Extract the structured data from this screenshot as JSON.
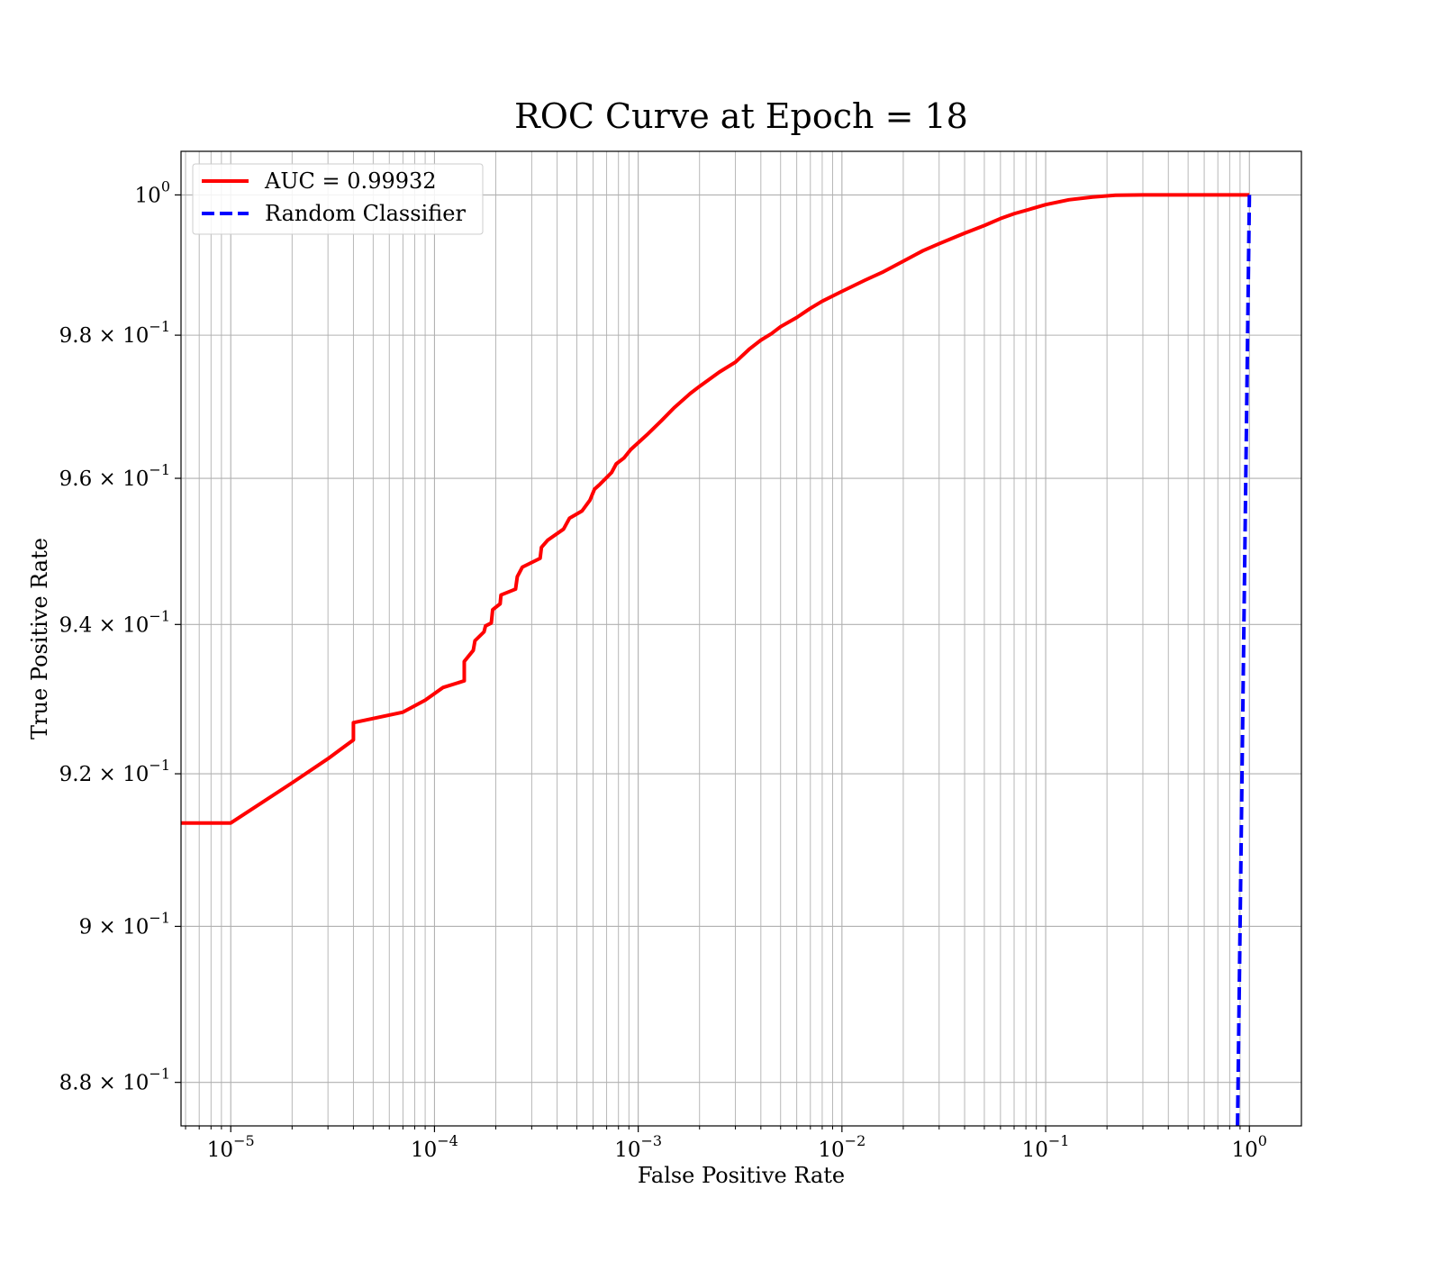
{
  "chart_data": {
    "type": "line",
    "title": "ROC Curve at Epoch = 18",
    "xlabel": "False Positive Rate",
    "ylabel": "True Positive Rate",
    "xscale": "log",
    "yscale": "log",
    "xlim": [
      5.7e-06,
      1.8
    ],
    "ylim": [
      0.8745,
      1.0063
    ],
    "grid": true,
    "grid_minor": true,
    "legend_position": "top-left",
    "x_ticks": [
      {
        "value": 1e-05,
        "base": "10",
        "exp": "−5"
      },
      {
        "value": 0.0001,
        "base": "10",
        "exp": "−4"
      },
      {
        "value": 0.001,
        "base": "10",
        "exp": "−3"
      },
      {
        "value": 0.01,
        "base": "10",
        "exp": "−2"
      },
      {
        "value": 0.1,
        "base": "10",
        "exp": "−1"
      },
      {
        "value": 1,
        "base": "10",
        "exp": "0"
      }
    ],
    "y_ticks": [
      {
        "value": 0.88,
        "base": "8.8 × 10",
        "exp": "−1"
      },
      {
        "value": 0.9,
        "base": "9 × 10",
        "exp": "−1"
      },
      {
        "value": 0.92,
        "base": "9.2 × 10",
        "exp": "−1"
      },
      {
        "value": 0.94,
        "base": "9.4 × 10",
        "exp": "−1"
      },
      {
        "value": 0.96,
        "base": "9.6 × 10",
        "exp": "−1"
      },
      {
        "value": 0.98,
        "base": "9.8 × 10",
        "exp": "−1"
      },
      {
        "value": 1.0,
        "base": "10",
        "exp": "0"
      }
    ],
    "series": [
      {
        "name": "AUC = 0.99932",
        "color": "#ff0000",
        "style": "solid",
        "x": [
          5.7e-06,
          1e-05,
          2e-05,
          3e-05,
          4e-05,
          4e-05,
          7e-05,
          9e-05,
          0.00011,
          0.00014,
          0.00014,
          0.000155,
          0.000158,
          0.000175,
          0.000178,
          0.00019,
          0.000193,
          0.00021,
          0.000212,
          0.00025,
          0.000255,
          0.00027,
          0.00033,
          0.000335,
          0.00036,
          0.00043,
          0.00046,
          0.00053,
          0.00058,
          0.00061,
          0.00065,
          0.00074,
          0.00078,
          0.00085,
          0.00092,
          0.0011,
          0.0013,
          0.0015,
          0.0018,
          0.002,
          0.0025,
          0.003,
          0.0035,
          0.004,
          0.0045,
          0.005,
          0.006,
          0.007,
          0.008,
          0.01,
          0.013,
          0.016,
          0.02,
          0.025,
          0.03,
          0.04,
          0.05,
          0.06,
          0.07,
          0.085,
          0.1,
          0.13,
          0.17,
          0.22,
          0.3,
          0.45,
          0.65,
          1.0
        ],
        "y": [
          0.9135,
          0.9135,
          0.9188,
          0.922,
          0.9245,
          0.9268,
          0.9282,
          0.9298,
          0.9315,
          0.9324,
          0.935,
          0.9365,
          0.9378,
          0.939,
          0.9398,
          0.9402,
          0.942,
          0.9428,
          0.944,
          0.9448,
          0.9465,
          0.9478,
          0.949,
          0.9505,
          0.9515,
          0.953,
          0.9545,
          0.9555,
          0.957,
          0.9585,
          0.9592,
          0.9608,
          0.962,
          0.9628,
          0.964,
          0.966,
          0.968,
          0.9698,
          0.9718,
          0.9728,
          0.9748,
          0.9762,
          0.978,
          0.9793,
          0.9802,
          0.9812,
          0.9825,
          0.9838,
          0.9848,
          0.9862,
          0.9878,
          0.989,
          0.9905,
          0.992,
          0.993,
          0.9945,
          0.9956,
          0.9966,
          0.9973,
          0.998,
          0.9986,
          0.9993,
          0.9997,
          0.99995,
          1.0,
          1.0,
          1.0,
          1.0
        ]
      },
      {
        "name": "Random Classifier",
        "color": "#0000ff",
        "style": "dashed",
        "x": [
          0.8745,
          1.0
        ],
        "y": [
          0.8745,
          1.0
        ]
      }
    ]
  }
}
